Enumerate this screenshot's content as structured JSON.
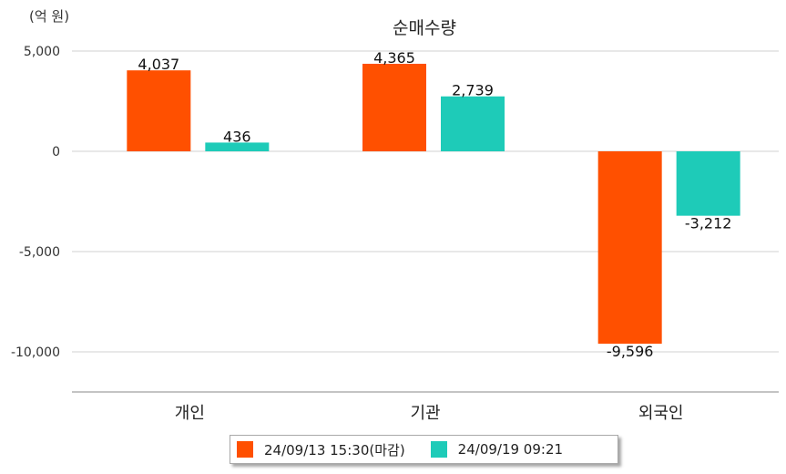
{
  "unit_label": "(억 원)",
  "chart_data": {
    "type": "bar",
    "title": "순매수량",
    "categories": [
      "개인",
      "기관",
      "외국인"
    ],
    "series": [
      {
        "name": "24/09/13 15:30(마감)",
        "values": [
          4037,
          4365,
          -9596
        ],
        "labels": [
          "4,037",
          "4,365",
          "-9,596"
        ],
        "color": "#ff5000"
      },
      {
        "name": "24/09/19 09:21",
        "values": [
          436,
          2739,
          -3212
        ],
        "labels": [
          "436",
          "2,739",
          "-3,212"
        ],
        "color": "#1ecbb8"
      }
    ],
    "y_ticks": [
      5000,
      0,
      -5000,
      -10000
    ],
    "y_tick_labels": [
      "5,000",
      "0",
      "-5,000",
      "-10,000"
    ],
    "ylim": [
      -12000,
      5000
    ],
    "grid": true,
    "legend_position": "bottom"
  }
}
